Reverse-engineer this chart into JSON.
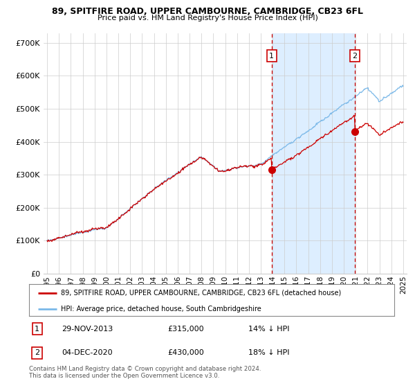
{
  "title_line1": "89, SPITFIRE ROAD, UPPER CAMBOURNE, CAMBRIDGE, CB23 6FL",
  "title_line2": "Price paid vs. HM Land Registry's House Price Index (HPI)",
  "hpi_color": "#7ab8e8",
  "hpi_fill_color": "#ddeeff",
  "price_color": "#cc0000",
  "marker_color": "#cc0000",
  "vline_color": "#cc0000",
  "background_color": "#ffffff",
  "grid_color": "#cccccc",
  "ylim": [
    0,
    730000
  ],
  "yticks": [
    0,
    100000,
    200000,
    300000,
    400000,
    500000,
    600000,
    700000
  ],
  "ytick_labels": [
    "£0",
    "£100K",
    "£200K",
    "£300K",
    "£400K",
    "£500K",
    "£600K",
    "£700K"
  ],
  "sale1_date": "29-NOV-2013",
  "sale1_price": 315000,
  "sale1_label": "14% ↓ HPI",
  "sale1_x": 2013.92,
  "sale2_date": "04-DEC-2020",
  "sale2_price": 430000,
  "sale2_label": "18% ↓ HPI",
  "sale2_x": 2020.92,
  "legend_property": "89, SPITFIRE ROAD, UPPER CAMBOURNE, CAMBRIDGE, CB23 6FL (detached house)",
  "legend_hpi": "HPI: Average price, detached house, South Cambridgeshire",
  "footnote": "Contains HM Land Registry data © Crown copyright and database right 2024.\nThis data is licensed under the Open Government Licence v3.0.",
  "xlim": [
    1994.7,
    2025.3
  ],
  "year_start": 1995,
  "year_end": 2025
}
